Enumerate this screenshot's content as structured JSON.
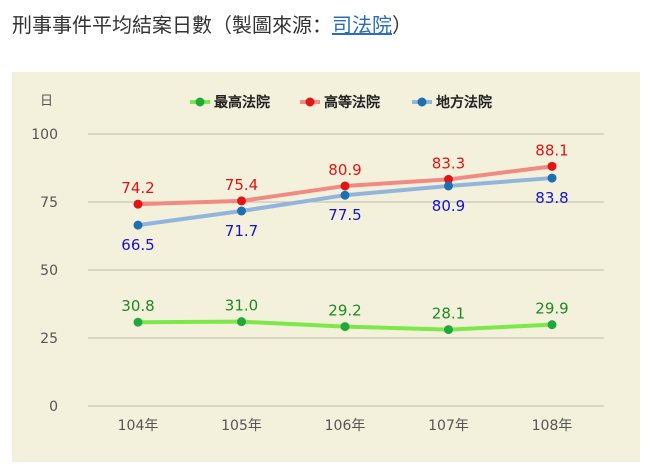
{
  "heading": {
    "title": "刑事事件平均結案日數",
    "paren_open": "（製圖來源：",
    "source_link": "司法院",
    "paren_close": "）"
  },
  "chart_data": {
    "type": "line",
    "ylabel": "日",
    "ylim": [
      0,
      100
    ],
    "yticks": [
      0,
      25,
      50,
      75,
      100
    ],
    "categories": [
      "104年",
      "105年",
      "106年",
      "107年",
      "108年"
    ],
    "grid": true,
    "legend_position": "top",
    "series": [
      {
        "name": "最高法院",
        "values": [
          30.8,
          31.0,
          29.2,
          28.1,
          29.9
        ],
        "line_color": "#7de84a",
        "marker_color": "#22a83a",
        "label_color": "#1f8a1f",
        "label_pos": "above"
      },
      {
        "name": "高等法院",
        "values": [
          74.2,
          75.4,
          80.9,
          83.3,
          88.1
        ],
        "line_color": "#f08a82",
        "marker_color": "#e01515",
        "label_color": "#e01515",
        "label_pos": "above"
      },
      {
        "name": "地方法院",
        "values": [
          66.5,
          71.7,
          77.5,
          80.9,
          83.8
        ],
        "line_color": "#93b4dc",
        "marker_color": "#1e6fb0",
        "label_color": "#1414c8",
        "label_pos": "below"
      }
    ]
  }
}
